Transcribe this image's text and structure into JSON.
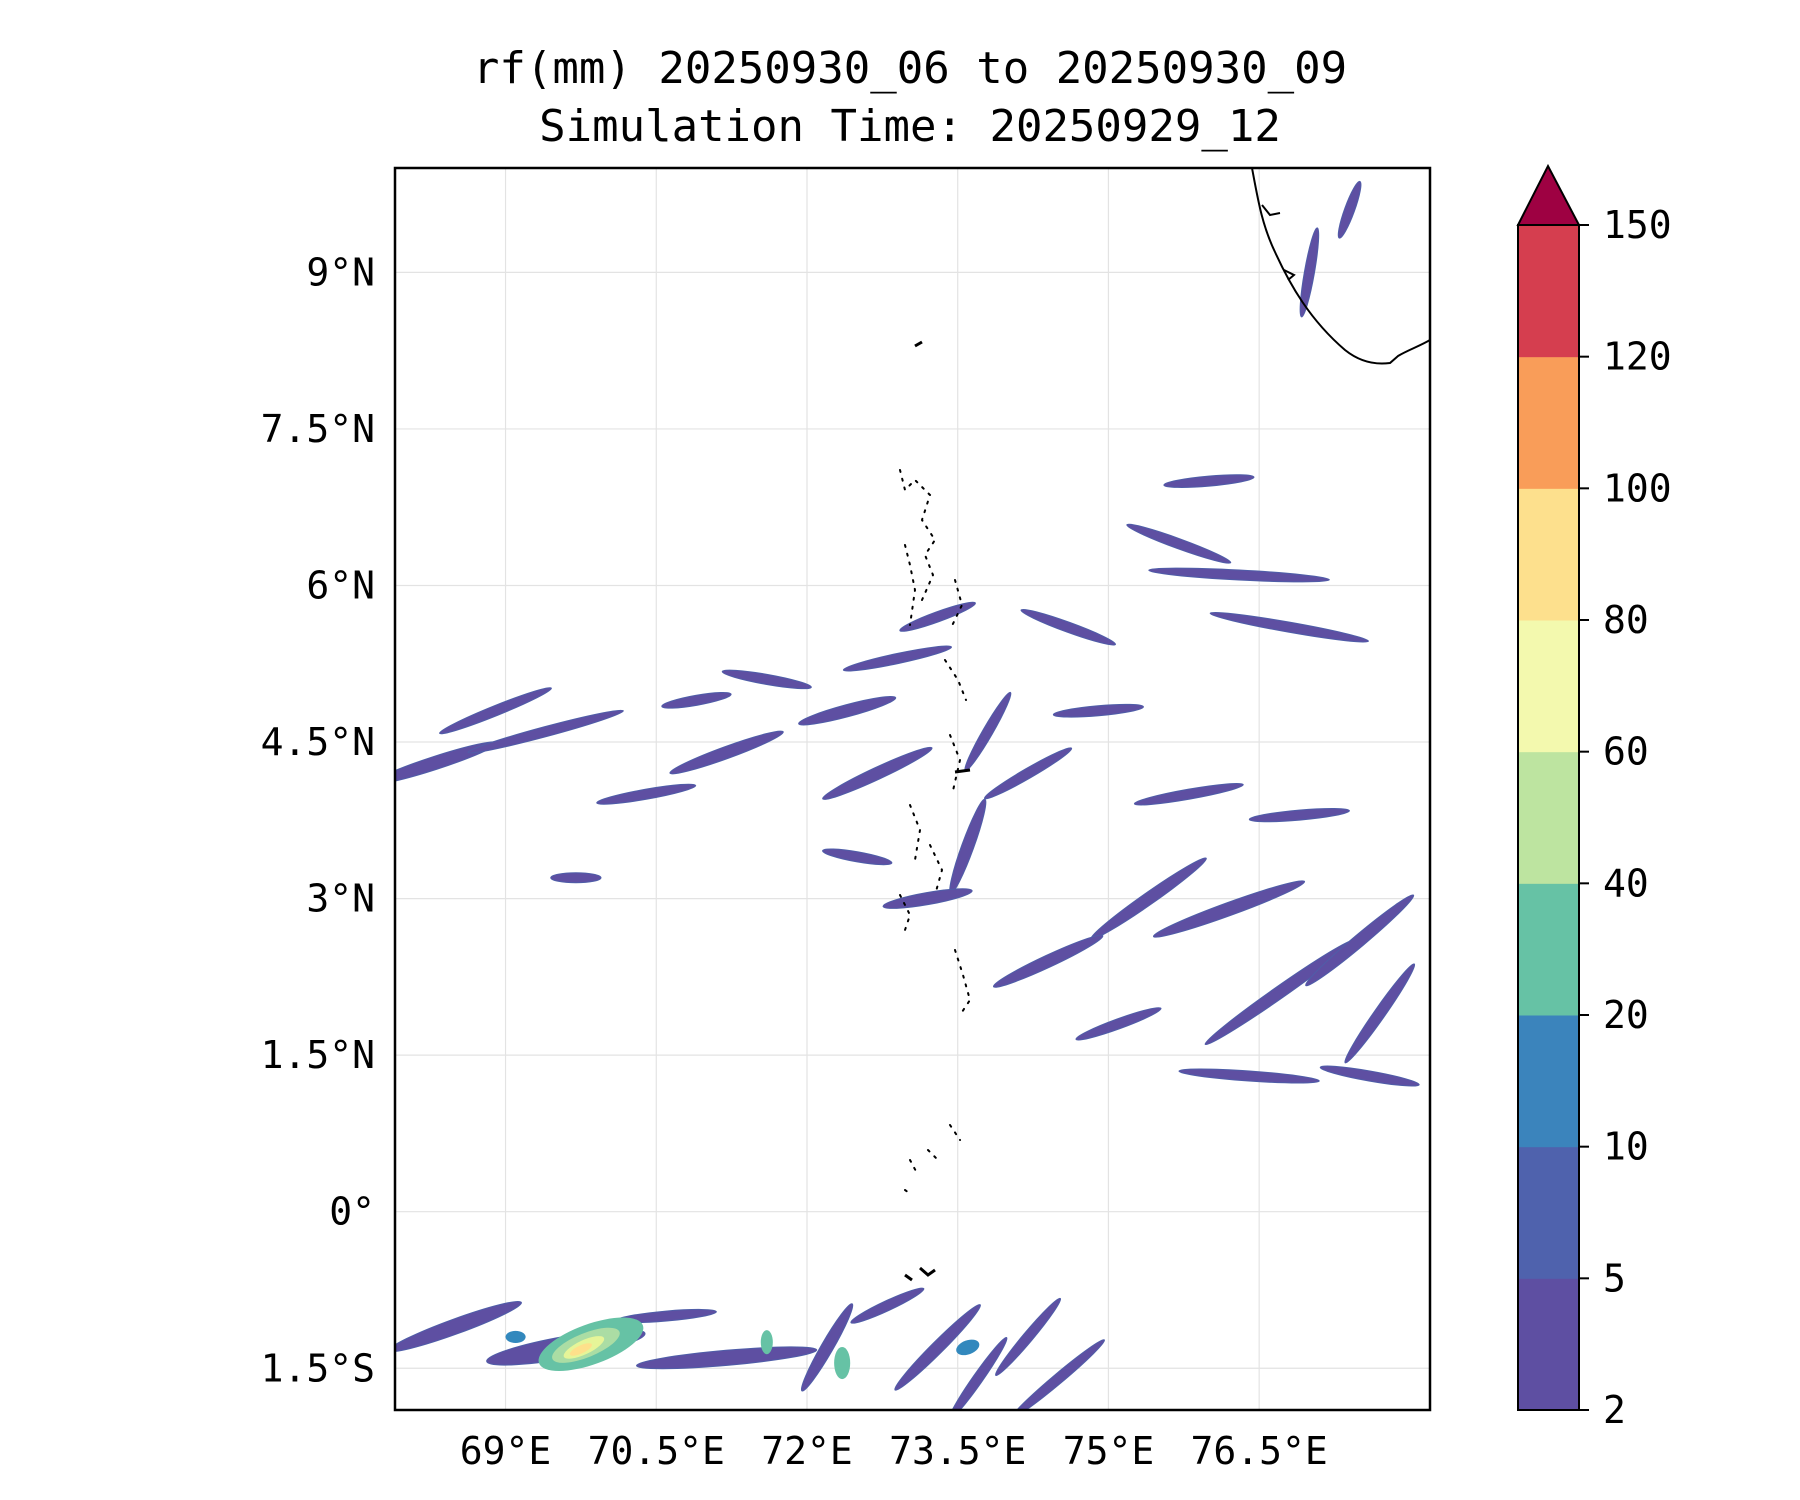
{
  "title": {
    "line1": "rf(mm) 20250930_06 to 20250930_09",
    "line2": "Simulation Time: 20250929_12"
  },
  "map": {
    "lon_range": [
      67.9,
      78.2
    ],
    "lat_range": [
      -1.9,
      10.0
    ],
    "lat_ticks": [
      {
        "value": 9.0,
        "label": "9°N"
      },
      {
        "value": 7.5,
        "label": "7.5°N"
      },
      {
        "value": 6.0,
        "label": "6°N"
      },
      {
        "value": 4.5,
        "label": "4.5°N"
      },
      {
        "value": 3.0,
        "label": "3°N"
      },
      {
        "value": 1.5,
        "label": "1.5°N"
      },
      {
        "value": 0.0,
        "label": "0°"
      },
      {
        "value": -1.5,
        "label": "1.5°S"
      }
    ],
    "lon_ticks": [
      {
        "value": 69.0,
        "label": "69°E"
      },
      {
        "value": 70.5,
        "label": "70.5°E"
      },
      {
        "value": 72.0,
        "label": "72°E"
      },
      {
        "value": 73.5,
        "label": "73.5°E"
      },
      {
        "value": 75.0,
        "label": "75°E"
      },
      {
        "value": 76.5,
        "label": "76.5°E"
      }
    ],
    "rain_bands": [
      {
        "lon": 68.3,
        "lat": 4.3,
        "len": 1.3,
        "ang": 18,
        "w": 0.13
      },
      {
        "lon": 69.4,
        "lat": 4.6,
        "len": 1.6,
        "ang": 15,
        "w": 0.1
      },
      {
        "lon": 68.9,
        "lat": 4.8,
        "len": 1.2,
        "ang": 22,
        "w": 0.08
      },
      {
        "lon": 70.4,
        "lat": 4.0,
        "len": 1.0,
        "ang": 10,
        "w": 0.1
      },
      {
        "lon": 71.2,
        "lat": 4.4,
        "len": 1.2,
        "ang": 20,
        "w": 0.12
      },
      {
        "lon": 71.6,
        "lat": 5.1,
        "len": 0.9,
        "ang": -10,
        "w": 0.09
      },
      {
        "lon": 72.4,
        "lat": 4.8,
        "len": 1.0,
        "ang": 15,
        "w": 0.12
      },
      {
        "lon": 72.9,
        "lat": 5.3,
        "len": 1.1,
        "ang": 12,
        "w": 0.1
      },
      {
        "lon": 72.7,
        "lat": 4.2,
        "len": 1.2,
        "ang": 25,
        "w": 0.12
      },
      {
        "lon": 73.3,
        "lat": 5.7,
        "len": 0.8,
        "ang": 20,
        "w": 0.09
      },
      {
        "lon": 73.8,
        "lat": 4.6,
        "len": 0.9,
        "ang": 60,
        "w": 0.1
      },
      {
        "lon": 73.6,
        "lat": 3.5,
        "len": 1.0,
        "ang": 70,
        "w": 0.12
      },
      {
        "lon": 72.5,
        "lat": 3.4,
        "len": 0.7,
        "ang": -10,
        "w": 0.1
      },
      {
        "lon": 73.2,
        "lat": 3.0,
        "len": 0.9,
        "ang": 10,
        "w": 0.12
      },
      {
        "lon": 74.2,
        "lat": 4.2,
        "len": 1.0,
        "ang": 30,
        "w": 0.1
      },
      {
        "lon": 74.6,
        "lat": 5.6,
        "len": 1.0,
        "ang": -20,
        "w": 0.09
      },
      {
        "lon": 74.9,
        "lat": 4.8,
        "len": 0.9,
        "ang": 5,
        "w": 0.08
      },
      {
        "lon": 75.4,
        "lat": 3.0,
        "len": 1.4,
        "ang": 35,
        "w": 0.12
      },
      {
        "lon": 74.4,
        "lat": 2.4,
        "len": 1.2,
        "ang": 25,
        "w": 0.12
      },
      {
        "lon": 75.8,
        "lat": 4.0,
        "len": 1.1,
        "ang": 10,
        "w": 0.09
      },
      {
        "lon": 76.2,
        "lat": 2.9,
        "len": 1.6,
        "ang": 20,
        "w": 0.13
      },
      {
        "lon": 76.7,
        "lat": 2.1,
        "len": 1.8,
        "ang": 35,
        "w": 0.12
      },
      {
        "lon": 77.5,
        "lat": 2.6,
        "len": 1.4,
        "ang": 40,
        "w": 0.12
      },
      {
        "lon": 77.7,
        "lat": 1.9,
        "len": 1.2,
        "ang": 55,
        "w": 0.11
      },
      {
        "lon": 76.3,
        "lat": 6.1,
        "len": 1.8,
        "ang": -3,
        "w": 0.09
      },
      {
        "lon": 76.8,
        "lat": 5.6,
        "len": 1.6,
        "ang": -10,
        "w": 0.1
      },
      {
        "lon": 75.7,
        "lat": 6.4,
        "len": 1.1,
        "ang": -20,
        "w": 0.08
      },
      {
        "lon": 76.0,
        "lat": 7.0,
        "len": 0.9,
        "ang": 5,
        "w": 0.07
      },
      {
        "lon": 76.4,
        "lat": 1.3,
        "len": 1.4,
        "ang": -4,
        "w": 0.08
      },
      {
        "lon": 77.6,
        "lat": 1.3,
        "len": 1.0,
        "ang": -10,
        "w": 0.1
      },
      {
        "lon": 76.9,
        "lat": 3.8,
        "len": 1.0,
        "ang": 5,
        "w": 0.07
      },
      {
        "lon": 75.1,
        "lat": 1.8,
        "len": 0.9,
        "ang": 20,
        "w": 0.08
      },
      {
        "lon": 69.7,
        "lat": 3.2,
        "len": 0.5,
        "ang": 0,
        "w": 0.05
      },
      {
        "lon": 70.9,
        "lat": 4.9,
        "len": 0.7,
        "ang": 10,
        "w": 0.07
      },
      {
        "lon": 77.0,
        "lat": 9.0,
        "len": 0.9,
        "ang": 80,
        "w": 0.1
      },
      {
        "lon": 77.4,
        "lat": 9.6,
        "len": 0.6,
        "ang": 70,
        "w": 0.08
      },
      {
        "lon": 68.5,
        "lat": -1.1,
        "len": 1.4,
        "ang": 20,
        "w": 0.15
      },
      {
        "lon": 69.6,
        "lat": -1.3,
        "len": 1.6,
        "ang": 10,
        "w": 0.22
      },
      {
        "lon": 71.2,
        "lat": -1.4,
        "len": 1.8,
        "ang": 5,
        "w": 0.15
      },
      {
        "lon": 72.2,
        "lat": -1.3,
        "len": 1.0,
        "ang": 60,
        "w": 0.12
      },
      {
        "lon": 73.3,
        "lat": -1.3,
        "len": 1.2,
        "ang": 45,
        "w": 0.12
      },
      {
        "lon": 74.2,
        "lat": -1.2,
        "len": 1.0,
        "ang": 50,
        "w": 0.1
      },
      {
        "lon": 74.5,
        "lat": -1.6,
        "len": 1.2,
        "ang": 40,
        "w": 0.1
      },
      {
        "lon": 73.7,
        "lat": -1.6,
        "len": 1.0,
        "ang": 55,
        "w": 0.1
      },
      {
        "lon": 70.6,
        "lat": -1.0,
        "len": 1.0,
        "ang": 5,
        "w": 0.08
      },
      {
        "lon": 72.8,
        "lat": -0.9,
        "len": 0.8,
        "ang": 25,
        "w": 0.08
      }
    ],
    "rain_cells": [
      {
        "lon": 69.85,
        "lat": -1.27,
        "rx": 0.55,
        "ry": 0.2,
        "ang": 20,
        "color": "#66c2a5"
      },
      {
        "lon": 69.8,
        "lat": -1.28,
        "rx": 0.36,
        "ry": 0.12,
        "ang": 22,
        "color": "#abdda4"
      },
      {
        "lon": 69.78,
        "lat": -1.3,
        "rx": 0.22,
        "ry": 0.07,
        "ang": 25,
        "color": "#e6f598"
      },
      {
        "lon": 69.75,
        "lat": -1.32,
        "rx": 0.12,
        "ry": 0.04,
        "ang": 25,
        "color": "#fee08b"
      },
      {
        "lon": 72.35,
        "lat": -1.45,
        "rx": 0.08,
        "ry": 0.16,
        "ang": 0,
        "color": "#66c2a5"
      },
      {
        "lon": 71.6,
        "lat": -1.25,
        "rx": 0.06,
        "ry": 0.12,
        "ang": 0,
        "color": "#66c2a5"
      },
      {
        "lon": 69.1,
        "lat": -1.2,
        "rx": 0.1,
        "ry": 0.06,
        "ang": 0,
        "color": "#3288bd"
      },
      {
        "lon": 73.6,
        "lat": -1.3,
        "rx": 0.12,
        "ry": 0.07,
        "ang": 20,
        "color": "#3288bd"
      }
    ],
    "colors": {
      "rain_base": "#5e4fa2",
      "rain_edge": "#4f5ea8",
      "coast": "#000000",
      "grid": "#e3e3e3"
    }
  },
  "colorbar": {
    "levels": [
      "2",
      "5",
      "10",
      "20",
      "40",
      "60",
      "80",
      "100",
      "120",
      "150"
    ],
    "colors": [
      "#5e4fa2",
      "#4f62ad",
      "#3b84bc",
      "#66c2a5",
      "#bde4a0",
      "#f3f9ae",
      "#fde08d",
      "#f99d59",
      "#d53e4f"
    ],
    "extend_color": "#9e0142"
  }
}
